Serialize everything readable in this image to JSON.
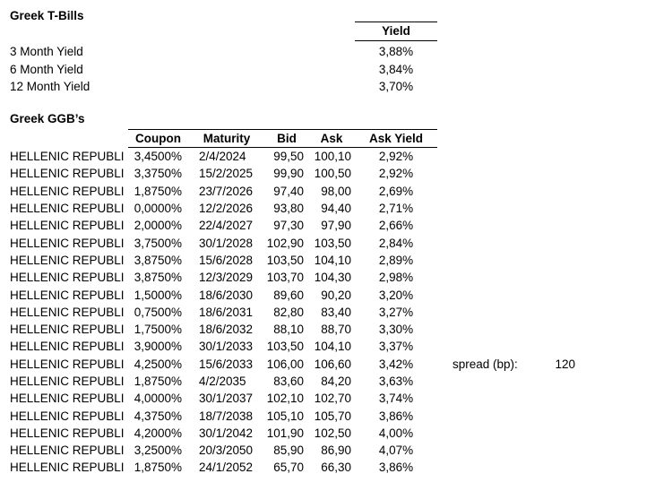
{
  "tbills": {
    "title": "Greek T-Bills",
    "yield_header": "Yield",
    "rows": [
      {
        "label": "3 Month Yield",
        "value": "3,88%"
      },
      {
        "label": "6 Month Yield",
        "value": "3,84%"
      },
      {
        "label": "12 Month Yield",
        "value": "3,70%"
      }
    ]
  },
  "ggbs": {
    "title": "Greek GGB’s",
    "bond_name": "HELLENIC REPUBLI",
    "headers": [
      "Coupon",
      "Maturity",
      "Bid",
      "Ask",
      "Ask Yield"
    ],
    "rows": [
      [
        "3,4500%",
        "2/4/2024",
        "99,50",
        "100,10",
        "2,92%"
      ],
      [
        "3,3750%",
        "15/2/2025",
        "99,90",
        "100,50",
        "2,92%"
      ],
      [
        "1,8750%",
        "23/7/2026",
        "97,40",
        "98,00",
        "2,69%"
      ],
      [
        "0,0000%",
        "12/2/2026",
        "93,80",
        "94,40",
        "2,71%"
      ],
      [
        "2,0000%",
        "22/4/2027",
        "97,30",
        "97,90",
        "2,66%"
      ],
      [
        "3,7500%",
        "30/1/2028",
        "102,90",
        "103,50",
        "2,84%"
      ],
      [
        "3,8750%",
        "15/6/2028",
        "103,50",
        "104,10",
        "2,89%"
      ],
      [
        "3,8750%",
        "12/3/2029",
        "103,70",
        "104,30",
        "2,98%"
      ],
      [
        "1,5000%",
        "18/6/2030",
        "89,60",
        "90,20",
        "3,20%"
      ],
      [
        "0,7500%",
        "18/6/2031",
        "82,80",
        "83,40",
        "3,27%"
      ],
      [
        "1,7500%",
        "18/6/2032",
        "88,10",
        "88,70",
        "3,30%"
      ],
      [
        "3,9000%",
        "30/1/2033",
        "103,50",
        "104,10",
        "3,37%"
      ],
      [
        "4,2500%",
        "15/6/2033",
        "106,00",
        "106,60",
        "3,42%"
      ],
      [
        "1,8750%",
        "4/2/2035",
        "83,60",
        "84,20",
        "3,63%"
      ],
      [
        "4,0000%",
        "30/1/2037",
        "102,10",
        "102,70",
        "3,74%"
      ],
      [
        "4,3750%",
        "18/7/2038",
        "105,10",
        "105,70",
        "3,86%"
      ],
      [
        "4,2000%",
        "30/1/2042",
        "101,90",
        "102,50",
        "4,00%"
      ],
      [
        "3,2500%",
        "20/3/2050",
        "85,90",
        "86,90",
        "4,07%"
      ],
      [
        "1,8750%",
        "24/1/2052",
        "65,70",
        "66,30",
        "3,86%"
      ]
    ]
  },
  "spread": {
    "label": "spread (bp):",
    "value": "120"
  }
}
